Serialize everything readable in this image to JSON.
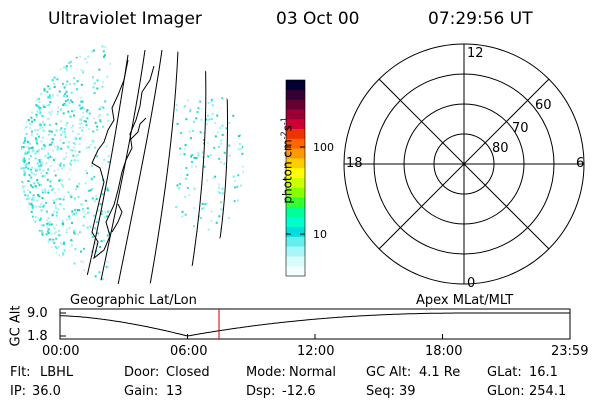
{
  "header": {
    "instrument": "Ultraviolet Imager",
    "date": "03 Oct 00",
    "time": "07:29:56 UT"
  },
  "image_panel": {
    "coordinate_label": "Geographic Lat/Lon"
  },
  "colorbar": {
    "unit_text": "photon cm",
    "unit_sup1": "-2",
    "unit_mid": "s",
    "unit_sup2": "-1",
    "tick_labels": [
      "100",
      "10"
    ],
    "scale": "log",
    "colors": [
      "#000033",
      "#330033",
      "#660033",
      "#990033",
      "#cc0033",
      "#ee3300",
      "#ff6600",
      "#ff9900",
      "#ffcc00",
      "#ffff00",
      "#ccff00",
      "#88ff00",
      "#33ff33",
      "#00ff99",
      "#00ffcc",
      "#00dddd",
      "#66eeee",
      "#aaf5f5",
      "#d8fbfb",
      "#f4ffff"
    ]
  },
  "polar_plot": {
    "coordinate_label": "Apex MLat/MLT",
    "mlt_labels": {
      "top": "12",
      "right": "6",
      "bottom": "0",
      "left": "18"
    },
    "lat_labels": [
      "60",
      "70",
      "80"
    ]
  },
  "altitude_plot": {
    "ylabel": "GC Alt",
    "yticks": [
      "9.0",
      "1.8"
    ],
    "xticks": [
      "00:00",
      "06:00",
      "12:00",
      "18:00",
      "23:59"
    ],
    "current_time_marker_color": "#cc0000",
    "line_color": "#000000"
  },
  "status": {
    "row1": [
      {
        "label": "Flt:",
        "value": "LBHL"
      },
      {
        "label": "Door:",
        "value": "Closed"
      },
      {
        "label": "Mode:",
        "value": "Normal"
      },
      {
        "label": "GC Alt:",
        "value": "4.1 Re"
      },
      {
        "label": "GLat:",
        "value": "16.1"
      }
    ],
    "row2": [
      {
        "label": "IP:",
        "value": "36.0"
      },
      {
        "label": "Gain:",
        "value": "13"
      },
      {
        "label": "Dsp:",
        "value": "-12.6"
      },
      {
        "label": "Seq:",
        "value": "39"
      },
      {
        "label": "GLon:",
        "value": "254.1"
      }
    ]
  },
  "palette": {
    "speckle": [
      "#33dddd",
      "#66eeee",
      "#99f2f2",
      "#22ccbb",
      "#bfeff0"
    ]
  }
}
